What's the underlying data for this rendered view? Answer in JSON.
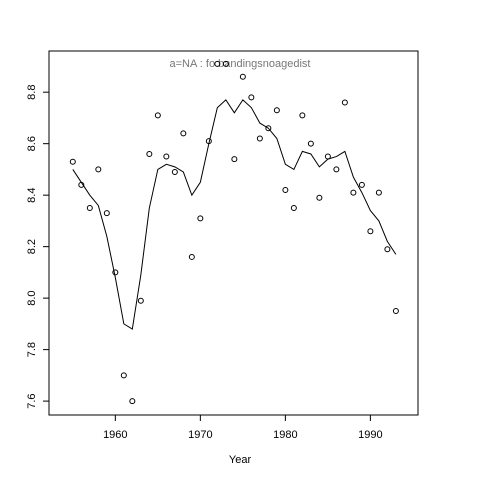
{
  "chart_data": {
    "type": "scatter",
    "title": "a=NA  :  fo bandingsnoagedist",
    "x_label": "Year",
    "x": [
      1955,
      1956,
      1957,
      1958,
      1959,
      1960,
      1961,
      1962,
      1963,
      1964,
      1965,
      1966,
      1967,
      1968,
      1969,
      1970,
      1971,
      1972,
      1973,
      1974,
      1975,
      1976,
      1977,
      1978,
      1979,
      1980,
      1981,
      1982,
      1983,
      1984,
      1985,
      1986,
      1987,
      1988,
      1989,
      1990,
      1991,
      1992,
      1993
    ],
    "series": [
      {
        "style": "points",
        "color": "#000000",
        "values": [
          8.53,
          8.44,
          8.35,
          8.5,
          8.33,
          8.1,
          7.7,
          7.6,
          7.99,
          8.56,
          8.71,
          8.55,
          8.49,
          8.64,
          8.16,
          8.31,
          8.61,
          8.91,
          8.91,
          8.54,
          8.86,
          8.78,
          8.62,
          8.66,
          8.73,
          8.42,
          8.35,
          8.71,
          8.6,
          8.39,
          8.55,
          8.5,
          8.76,
          8.41,
          8.44,
          8.26,
          8.41,
          8.19,
          7.95
        ]
      },
      {
        "style": "line",
        "color": "#000000",
        "values": [
          8.5,
          8.45,
          8.4,
          8.36,
          8.24,
          8.08,
          7.9,
          7.88,
          8.09,
          8.35,
          8.5,
          8.52,
          8.51,
          8.49,
          8.4,
          8.45,
          8.6,
          8.74,
          8.77,
          8.72,
          8.77,
          8.74,
          8.68,
          8.66,
          8.62,
          8.52,
          8.5,
          8.57,
          8.56,
          8.51,
          8.54,
          8.55,
          8.57,
          8.47,
          8.41,
          8.34,
          8.3,
          8.22,
          8.17
        ]
      }
    ],
    "xlim": [
      1952.2,
      1995.6
    ],
    "ylim": [
      7.546,
      8.96
    ],
    "xticks": [
      1960,
      1970,
      1980,
      1990
    ],
    "yticks": [
      7.6,
      7.8,
      {
        "value": 8,
        "label": "8.0"
      },
      8.2,
      8.4,
      8.6,
      8.8
    ]
  }
}
